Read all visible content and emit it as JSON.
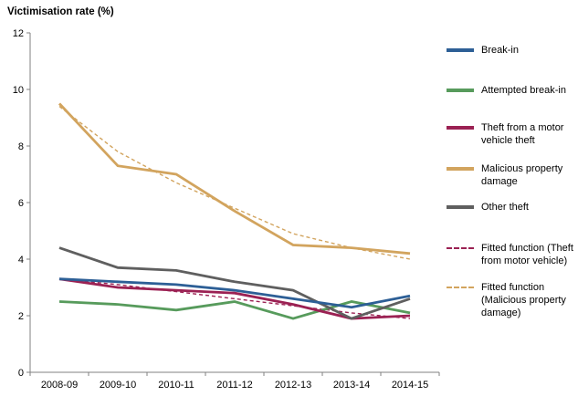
{
  "title": "Victimisation rate (%)",
  "colors": {
    "background": "#ffffff",
    "axis": "#808080",
    "text": "#000000",
    "break_in": "#2d5f96",
    "attempted_break_in": "#579b5c",
    "theft_motor_vehicle": "#9b2153",
    "malicious_property_damage": "#d2a45e",
    "other_theft": "#5f5f5f"
  },
  "chart_data": {
    "type": "line",
    "title": "Victimisation rate (%)",
    "xlabel": "",
    "ylabel": "Victimisation rate (%)",
    "ylim": [
      0,
      12
    ],
    "y_ticks": [
      0,
      2,
      4,
      6,
      8,
      10,
      12
    ],
    "grid": false,
    "legend_position": "right",
    "categories": [
      "2008-09",
      "2009-10",
      "2010-11",
      "2011-12",
      "2012-13",
      "2013-14",
      "2014-15"
    ],
    "series": [
      {
        "name": "Break-in",
        "color": "#2d5f96",
        "style": "solid",
        "values": [
          3.3,
          3.2,
          3.1,
          2.9,
          2.6,
          2.3,
          2.7
        ]
      },
      {
        "name": "Attempted break-in",
        "color": "#579b5c",
        "style": "solid",
        "values": [
          2.5,
          2.4,
          2.2,
          2.5,
          1.9,
          2.5,
          2.1
        ]
      },
      {
        "name": "Theft from a motor vehicle theft",
        "color": "#9b2153",
        "style": "solid",
        "values": [
          3.3,
          3.0,
          2.9,
          2.8,
          2.4,
          1.9,
          2.0
        ]
      },
      {
        "name": "Malicious property damage",
        "color": "#d2a45e",
        "style": "solid",
        "values": [
          9.5,
          7.3,
          7.0,
          5.7,
          4.5,
          4.4,
          4.2
        ]
      },
      {
        "name": "Other theft",
        "color": "#5f5f5f",
        "style": "solid",
        "values": [
          4.4,
          3.7,
          3.6,
          3.2,
          2.9,
          1.9,
          2.6
        ]
      },
      {
        "name": "Fitted function (Theft from motor vehicle)",
        "color": "#9b2153",
        "style": "dashed",
        "values": [
          3.3,
          3.1,
          2.85,
          2.6,
          2.35,
          2.1,
          1.9
        ]
      },
      {
        "name": "Fitted function (Malicious property damage)",
        "color": "#d2a45e",
        "style": "dashed",
        "values": [
          9.4,
          7.8,
          6.7,
          5.8,
          4.9,
          4.4,
          4.0
        ]
      }
    ]
  }
}
